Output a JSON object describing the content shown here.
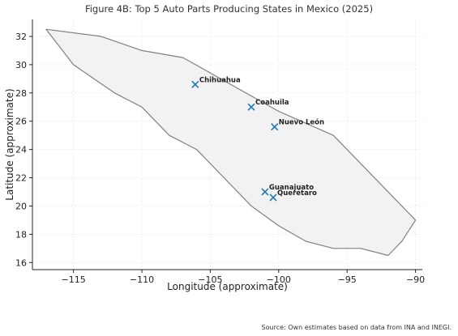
{
  "chart_data": {
    "type": "scatter",
    "title": "Figure 4B: Top 5 Auto Parts Producing States in Mexico (2025)",
    "xlabel": "Longitude (approximate)",
    "ylabel": "Latitude (approximate)",
    "xlim": [
      -118,
      -89.5
    ],
    "ylim": [
      15.5,
      33.2
    ],
    "x_ticks": [
      -115,
      -110,
      -105,
      -100,
      -95,
      -90
    ],
    "y_ticks": [
      16,
      18,
      20,
      22,
      24,
      26,
      28,
      30,
      32
    ],
    "x_tick_labels": [
      "−115",
      "−110",
      "−105",
      "−100",
      "−95",
      "−90"
    ],
    "y_tick_labels": [
      "16",
      "18",
      "20",
      "22",
      "24",
      "26",
      "28",
      "30",
      "32"
    ],
    "grid": true,
    "outline": [
      [
        -117,
        32.5
      ],
      [
        -113,
        32
      ],
      [
        -110,
        31
      ],
      [
        -107,
        30.5
      ],
      [
        -100,
        26.7
      ],
      [
        -96,
        25
      ],
      [
        -90,
        19
      ],
      [
        -91,
        17.5
      ],
      [
        -92,
        16.5
      ],
      [
        -94,
        17
      ],
      [
        -96,
        17
      ],
      [
        -98,
        17.5
      ],
      [
        -100,
        18.6
      ],
      [
        -102,
        20
      ],
      [
        -104,
        22
      ],
      [
        -106,
        24
      ],
      [
        -108,
        25
      ],
      [
        -110,
        27
      ],
      [
        -112,
        28
      ],
      [
        -115,
        30
      ]
    ],
    "points": [
      {
        "label": "Chihuahua",
        "x": -106.1,
        "y": 28.6
      },
      {
        "label": "Coahuila",
        "x": -102,
        "y": 27
      },
      {
        "label": "Nuevo León",
        "x": -100.3,
        "y": 25.6
      },
      {
        "label": "Guanajuato",
        "x": -101,
        "y": 21
      },
      {
        "label": "Querétaro",
        "x": -100.4,
        "y": 20.6
      }
    ],
    "marker": "x",
    "marker_color": "#1f77b4",
    "outline_color": "#808080",
    "outline_fill": "#f2f2f2"
  },
  "footer": {
    "source": "Source: Own estimates based on data from INA and INEGI."
  }
}
